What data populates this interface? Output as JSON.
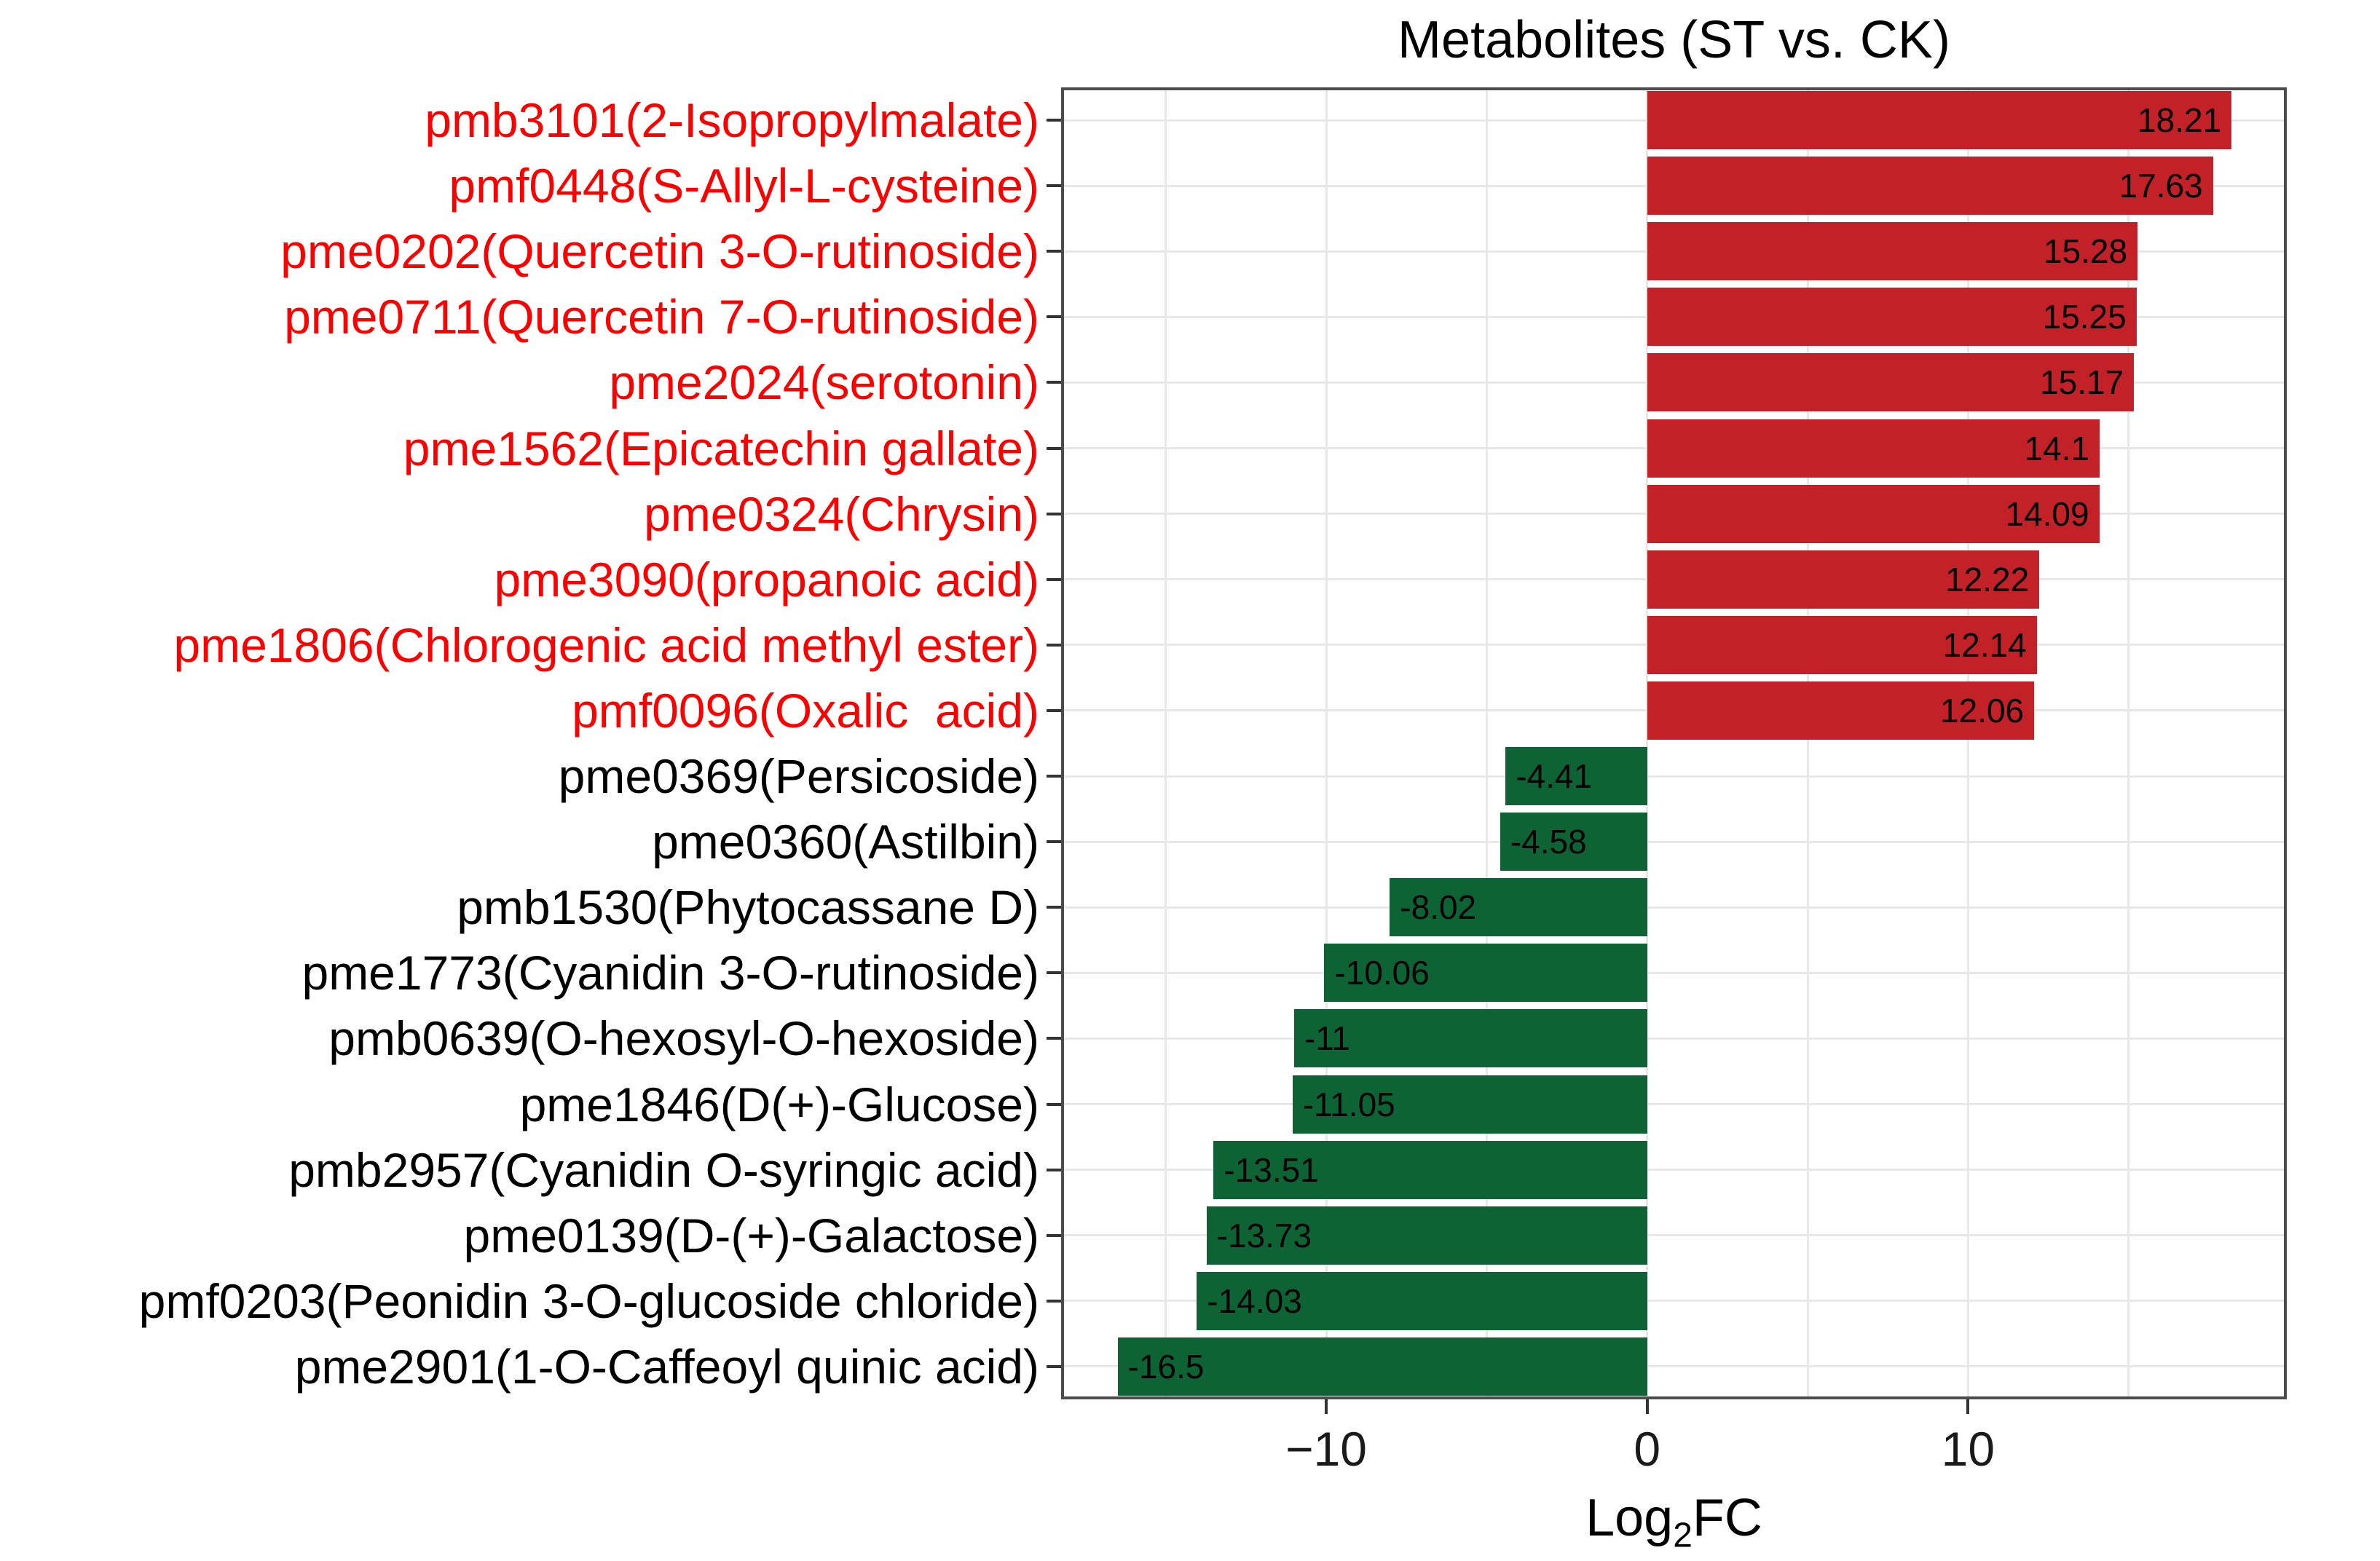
{
  "chart_data": {
    "type": "bar",
    "orientation": "horizontal",
    "title": "Metabolites (ST vs. CK)",
    "xlabel_parts": {
      "base": "Log",
      "sub": "2",
      "rest": "FC"
    },
    "xlim": [
      -18.26,
      19.93
    ],
    "x_gridlines": [
      -15,
      -10,
      -5,
      0,
      5,
      10,
      15
    ],
    "x_ticks": [
      {
        "value": -10,
        "label": "−10"
      },
      {
        "value": 0,
        "label": "0"
      },
      {
        "value": 10,
        "label": "10"
      }
    ],
    "categories": [
      "pmb3101(2-Isopropylmalate)",
      "pmf0448(S-Allyl-L-cysteine)",
      "pme0202(Quercetin 3-O-rutinoside)",
      "pme0711(Quercetin 7-O-rutinoside)",
      "pme2024(serotonin)",
      "pme1562(Epicatechin gallate)",
      "pme0324(Chrysin)",
      "pme3090(propanoic acid)",
      "pme1806(Chlorogenic acid methyl ester)",
      "pmf0096(Oxalic  acid)",
      "pme0369(Persicoside)",
      "pme0360(Astilbin)",
      "pmb1530(Phytocassane D)",
      "pme1773(Cyanidin 3-O-rutinoside)",
      "pmb0639(O-hexosyl-O-hexoside)",
      "pme1846(D(+)-Glucose)",
      "pmb2957(Cyanidin O-syringic acid)",
      "pme0139(D-(+)-Galactose)",
      "pmf0203(Peonidin 3-O-glucoside chloride)",
      "pme2901(1-O-Caffeoyl quinic acid)"
    ],
    "values": [
      18.21,
      17.63,
      15.28,
      15.25,
      15.17,
      14.1,
      14.09,
      12.22,
      12.14,
      12.06,
      -4.41,
      -4.58,
      -8.02,
      -10.06,
      -11,
      -11.05,
      -13.51,
      -13.73,
      -14.03,
      -16.5
    ],
    "value_labels": [
      "18.21",
      "17.63",
      "15.28",
      "15.25",
      "15.17",
      "14.1",
      "14.09",
      "12.22",
      "12.14",
      "12.06",
      "-4.41",
      "-4.58",
      "-8.02",
      "-10.06",
      "-11",
      "-11.05",
      "-13.51",
      "-13.73",
      "-14.03",
      "-16.5"
    ],
    "colors": {
      "bar_positive": "#C12127",
      "bar_negative": "#0D6334",
      "label_positive": "#FC0000",
      "label_negative": "#000000",
      "value_text": "#000000",
      "gridline": "#E8E8E8",
      "panel_border": "#4C4C4C",
      "tick": "#333333",
      "axis_text": "#1A1A1A"
    }
  }
}
